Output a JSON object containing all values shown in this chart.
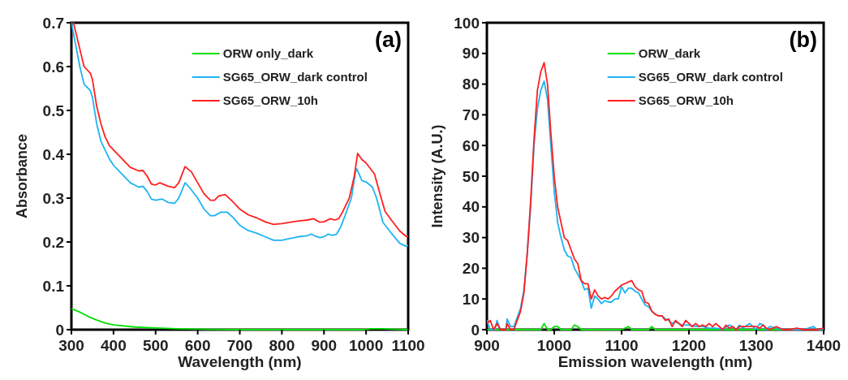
{
  "chart_data": [
    {
      "type": "line",
      "xlabel": "Wavelength (nm)",
      "ylabel": "Absorbance",
      "annotations": [
        "(a)"
      ],
      "xlim": [
        300,
        1100
      ],
      "ylim": [
        0,
        0.7
      ],
      "xticks": [
        300,
        400,
        500,
        600,
        700,
        800,
        900,
        1000,
        1100
      ],
      "yticks": [
        0,
        0.1,
        0.2,
        0.3,
        0.4,
        0.5,
        0.6,
        0.7
      ],
      "legend": "top right",
      "series": [
        {
          "name": "ORW only_dark",
          "color": "#00e000",
          "x": [
            300,
            320,
            340,
            360,
            380,
            400,
            420,
            450,
            500,
            550,
            600,
            700,
            800,
            900,
            1000,
            1010,
            1040,
            1060,
            1100
          ],
          "values": [
            0.048,
            0.04,
            0.03,
            0.022,
            0.015,
            0.011,
            0.009,
            0.006,
            0.004,
            0.002,
            0.001,
            0,
            0,
            0,
            0,
            0.002,
            0.002,
            0.001,
            0
          ]
        },
        {
          "name": "SG65_ORW_dark control",
          "color": "#1eb4f0",
          "x": [
            300,
            310,
            320,
            330,
            345,
            350,
            360,
            370,
            380,
            390,
            400,
            420,
            440,
            460,
            470,
            480,
            490,
            500,
            515,
            530,
            545,
            555,
            570,
            580,
            600,
            615,
            630,
            640,
            655,
            670,
            685,
            700,
            720,
            740,
            760,
            780,
            800,
            820,
            840,
            860,
            870,
            880,
            890,
            900,
            910,
            920,
            930,
            940,
            950,
            965,
            975,
            978,
            990,
            1000,
            1015,
            1025,
            1040,
            1060,
            1080,
            1095,
            1100
          ],
          "values": [
            0.7,
            0.65,
            0.6,
            0.56,
            0.545,
            0.53,
            0.47,
            0.43,
            0.41,
            0.39,
            0.375,
            0.355,
            0.335,
            0.325,
            0.327,
            0.315,
            0.298,
            0.295,
            0.298,
            0.29,
            0.288,
            0.3,
            0.335,
            0.325,
            0.3,
            0.275,
            0.26,
            0.26,
            0.268,
            0.268,
            0.255,
            0.238,
            0.226,
            0.22,
            0.212,
            0.204,
            0.204,
            0.208,
            0.212,
            0.214,
            0.218,
            0.213,
            0.21,
            0.212,
            0.218,
            0.215,
            0.218,
            0.235,
            0.26,
            0.3,
            0.36,
            0.367,
            0.34,
            0.337,
            0.325,
            0.3,
            0.245,
            0.22,
            0.197,
            0.19,
            0.192
          ]
        },
        {
          "name": "SG65_ORW_10h",
          "color": "#ff2020",
          "x": [
            305,
            320,
            330,
            345,
            350,
            360,
            370,
            380,
            390,
            400,
            420,
            440,
            460,
            470,
            480,
            490,
            500,
            510,
            530,
            545,
            555,
            570,
            585,
            600,
            615,
            630,
            640,
            650,
            665,
            680,
            700,
            720,
            740,
            760,
            780,
            800,
            820,
            840,
            860,
            875,
            890,
            900,
            915,
            925,
            935,
            945,
            960,
            972,
            980,
            990,
            1000,
            1020,
            1030,
            1045,
            1060,
            1080,
            1095,
            1100
          ],
          "values": [
            0.7,
            0.64,
            0.6,
            0.585,
            0.57,
            0.51,
            0.47,
            0.44,
            0.42,
            0.41,
            0.39,
            0.37,
            0.362,
            0.363,
            0.35,
            0.332,
            0.33,
            0.335,
            0.327,
            0.324,
            0.335,
            0.372,
            0.36,
            0.335,
            0.31,
            0.295,
            0.295,
            0.305,
            0.308,
            0.295,
            0.275,
            0.262,
            0.255,
            0.246,
            0.24,
            0.242,
            0.245,
            0.248,
            0.25,
            0.253,
            0.245,
            0.246,
            0.253,
            0.25,
            0.253,
            0.27,
            0.3,
            0.35,
            0.402,
            0.388,
            0.38,
            0.355,
            0.32,
            0.27,
            0.25,
            0.225,
            0.213,
            0.213
          ]
        }
      ]
    },
    {
      "type": "line",
      "xlabel": "Emission wavelength (nm)",
      "ylabel": "Intensity (A.U.)",
      "annotations": [
        "(b)"
      ],
      "xlim": [
        900,
        1400
      ],
      "ylim": [
        0,
        100
      ],
      "xticks": [
        900,
        1000,
        1100,
        1200,
        1300,
        1400
      ],
      "yticks": [
        0,
        10,
        20,
        30,
        40,
        50,
        60,
        70,
        80,
        90,
        100
      ],
      "legend": "top right",
      "series": [
        {
          "name": "ORW_dark",
          "color": "#00e000",
          "x": [
            900,
            980,
            985,
            990,
            995,
            1000,
            1005,
            1010,
            1025,
            1030,
            1035,
            1040,
            1100,
            1110,
            1115,
            1140,
            1145,
            1150,
            1400
          ],
          "values": [
            0,
            0,
            2,
            0,
            0,
            1,
            1,
            0,
            0,
            1.5,
            1,
            0,
            0,
            1,
            0,
            0,
            1,
            0,
            0
          ]
        },
        {
          "name": "SG65_ORW_dark control",
          "color": "#1eb4f0",
          "x": [
            900,
            905,
            912,
            915,
            920,
            928,
            930,
            935,
            940,
            950,
            955,
            960,
            965,
            970,
            975,
            980,
            985,
            990,
            995,
            1000,
            1005,
            1010,
            1015,
            1020,
            1025,
            1030,
            1035,
            1040,
            1045,
            1050,
            1055,
            1060,
            1065,
            1070,
            1075,
            1080,
            1085,
            1090,
            1095,
            1100,
            1105,
            1110,
            1115,
            1120,
            1125,
            1130,
            1135,
            1140,
            1145,
            1150,
            1155,
            1160,
            1165,
            1170,
            1175,
            1180,
            1190,
            1200,
            1210,
            1220,
            1230,
            1240,
            1250,
            1260,
            1265,
            1270,
            1275,
            1280,
            1290,
            1295,
            1300,
            1305,
            1310,
            1315,
            1320,
            1330,
            1340,
            1350,
            1360,
            1370,
            1385,
            1390,
            1400
          ],
          "values": [
            3,
            0,
            0,
            3,
            0,
            0,
            3.5,
            1,
            1,
            7,
            13,
            25,
            40,
            60,
            72,
            78,
            81,
            75,
            60,
            45,
            35,
            30,
            26,
            24,
            23.5,
            20,
            18,
            16,
            13,
            13.5,
            7,
            11,
            10,
            8.5,
            9.5,
            9,
            9,
            10,
            10,
            14,
            12,
            13.5,
            13.5,
            12.5,
            12,
            10,
            8,
            7.5,
            6,
            5,
            4.5,
            4.5,
            3.5,
            3,
            2,
            2.5,
            1.5,
            1.5,
            1,
            1,
            0.5,
            0.5,
            0,
            1.5,
            1,
            0,
            1.5,
            0.5,
            2,
            1,
            0,
            2,
            1.5,
            0,
            1,
            0.5,
            0,
            0,
            0,
            0,
            1,
            0,
            0
          ]
        },
        {
          "name": "SG65_ORW_10h",
          "color": "#ff2020",
          "x": [
            900,
            905,
            910,
            915,
            920,
            928,
            930,
            935,
            940,
            945,
            950,
            955,
            960,
            965,
            970,
            975,
            980,
            985,
            990,
            995,
            1000,
            1005,
            1010,
            1015,
            1020,
            1025,
            1030,
            1035,
            1040,
            1045,
            1050,
            1055,
            1060,
            1065,
            1070,
            1075,
            1080,
            1085,
            1090,
            1095,
            1100,
            1105,
            1110,
            1115,
            1120,
            1125,
            1130,
            1135,
            1140,
            1145,
            1150,
            1155,
            1160,
            1165,
            1170,
            1175,
            1180,
            1185,
            1190,
            1195,
            1200,
            1205,
            1210,
            1215,
            1220,
            1225,
            1230,
            1235,
            1240,
            1245,
            1250,
            1255,
            1260,
            1265,
            1270,
            1275,
            1280,
            1290,
            1300,
            1305,
            1310,
            1315,
            1320,
            1330,
            1340,
            1350,
            1360,
            1370,
            1380,
            1390,
            1400
          ],
          "values": [
            2,
            3,
            0,
            2,
            0,
            0,
            2,
            0,
            0,
            3,
            6,
            12,
            25,
            42,
            62,
            78,
            84,
            87,
            80,
            64,
            50,
            40,
            35,
            30,
            29,
            26,
            23,
            21.5,
            16,
            15,
            15,
            10,
            13,
            11,
            10,
            10.5,
            10,
            11,
            12.5,
            13.5,
            14.5,
            15,
            15.5,
            16,
            14,
            13,
            12.5,
            9,
            8.5,
            6,
            5,
            4.5,
            4.5,
            3,
            3.5,
            1,
            3,
            2,
            1,
            3,
            2,
            1,
            2,
            1,
            1.5,
            1,
            2,
            1,
            2,
            1,
            0,
            1.5,
            0.5,
            1,
            0,
            1,
            1,
            1,
            1,
            0.5,
            1.5,
            0.5,
            0,
            1,
            0,
            0,
            0.5,
            0,
            0,
            0,
            0.5
          ]
        }
      ]
    }
  ]
}
